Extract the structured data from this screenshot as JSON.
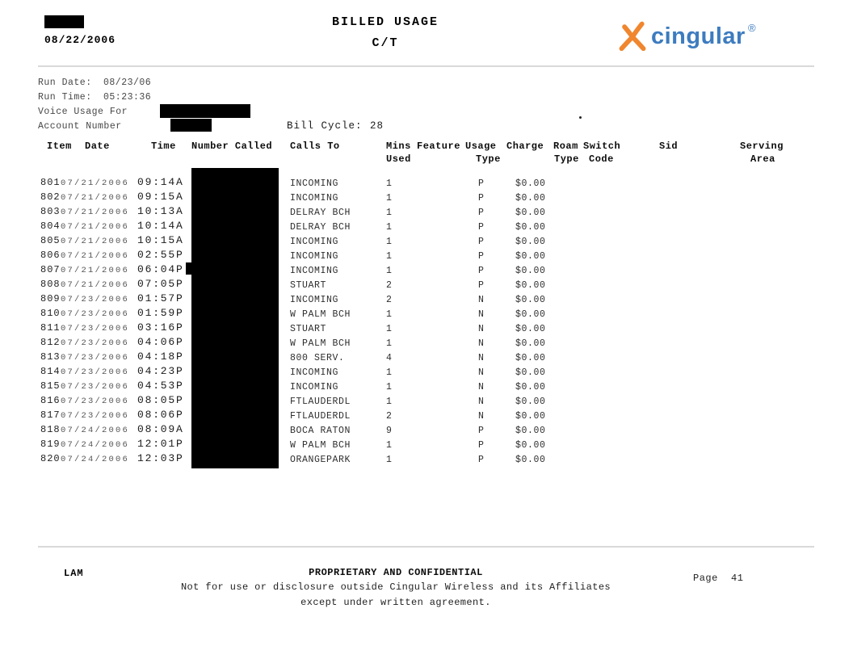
{
  "header": {
    "print_date": "08/22/2006",
    "title": "BILLED USAGE",
    "subtitle": "C/T",
    "logo": {
      "brand": "cingular",
      "registered_mark": "®",
      "orange": "#F0862E",
      "blue": "#3D7CBF"
    }
  },
  "meta": {
    "run_date_label": "Run Date:",
    "run_date_value": "08/23/06",
    "run_time_label": "Run Time:",
    "run_time_value": "05:23:36",
    "voice_usage_label": "Voice Usage For",
    "account_number_label": "Account Number",
    "bill_cycle_label": "Bill Cycle:",
    "bill_cycle_value": "28"
  },
  "table": {
    "headers": {
      "item": "Item",
      "date": "Date",
      "time": "Time",
      "number_called": "Number Called",
      "calls_to": "Calls To",
      "mins": "Mins",
      "used": "Used",
      "feature": "Feature",
      "usage": "Usage",
      "usage_type2": "Type",
      "charge": "Charge",
      "roam": "Roam",
      "roam_type2": "Type",
      "switch": "Switch",
      "code": "Code",
      "sid": "Sid",
      "serving": "Serving",
      "area": "Area"
    },
    "rows": [
      {
        "item": "801",
        "date": "07/21/2006",
        "time": "09:14A",
        "calls_to": "INCOMING",
        "mins_used": "1",
        "usage_type": "P",
        "charge": "$0.00"
      },
      {
        "item": "802",
        "date": "07/21/2006",
        "time": "09:15A",
        "calls_to": "INCOMING",
        "mins_used": "1",
        "usage_type": "P",
        "charge": "$0.00"
      },
      {
        "item": "803",
        "date": "07/21/2006",
        "time": "10:13A",
        "calls_to": "DELRAY BCH",
        "mins_used": "1",
        "usage_type": "P",
        "charge": "$0.00"
      },
      {
        "item": "804",
        "date": "07/21/2006",
        "time": "10:14A",
        "calls_to": "DELRAY BCH",
        "mins_used": "1",
        "usage_type": "P",
        "charge": "$0.00"
      },
      {
        "item": "805",
        "date": "07/21/2006",
        "time": "10:15A",
        "calls_to": "INCOMING",
        "mins_used": "1",
        "usage_type": "P",
        "charge": "$0.00"
      },
      {
        "item": "806",
        "date": "07/21/2006",
        "time": "02:55P",
        "calls_to": "INCOMING",
        "mins_used": "1",
        "usage_type": "P",
        "charge": "$0.00"
      },
      {
        "item": "807",
        "date": "07/21/2006",
        "time": "06:04P",
        "calls_to": "INCOMING",
        "mins_used": "1",
        "usage_type": "P",
        "charge": "$0.00"
      },
      {
        "item": "808",
        "date": "07/21/2006",
        "time": "07:05P",
        "calls_to": "STUART",
        "mins_used": "2",
        "usage_type": "P",
        "charge": "$0.00"
      },
      {
        "item": "809",
        "date": "07/23/2006",
        "time": "01:57P",
        "calls_to": "INCOMING",
        "mins_used": "2",
        "usage_type": "N",
        "charge": "$0.00"
      },
      {
        "item": "810",
        "date": "07/23/2006",
        "time": "01:59P",
        "calls_to": "W PALM BCH",
        "mins_used": "1",
        "usage_type": "N",
        "charge": "$0.00"
      },
      {
        "item": "811",
        "date": "07/23/2006",
        "time": "03:16P",
        "calls_to": "STUART",
        "mins_used": "1",
        "usage_type": "N",
        "charge": "$0.00"
      },
      {
        "item": "812",
        "date": "07/23/2006",
        "time": "04:06P",
        "calls_to": "W PALM BCH",
        "mins_used": "1",
        "usage_type": "N",
        "charge": "$0.00"
      },
      {
        "item": "813",
        "date": "07/23/2006",
        "time": "04:18P",
        "calls_to": "800 SERV.",
        "mins_used": "4",
        "usage_type": "N",
        "charge": "$0.00"
      },
      {
        "item": "814",
        "date": "07/23/2006",
        "time": "04:23P",
        "calls_to": "INCOMING",
        "mins_used": "1",
        "usage_type": "N",
        "charge": "$0.00"
      },
      {
        "item": "815",
        "date": "07/23/2006",
        "time": "04:53P",
        "calls_to": "INCOMING",
        "mins_used": "1",
        "usage_type": "N",
        "charge": "$0.00"
      },
      {
        "item": "816",
        "date": "07/23/2006",
        "time": "08:05P",
        "calls_to": "FTLAUDERDL",
        "mins_used": "1",
        "usage_type": "N",
        "charge": "$0.00"
      },
      {
        "item": "817",
        "date": "07/23/2006",
        "time": "08:06P",
        "calls_to": "FTLAUDERDL",
        "mins_used": "2",
        "usage_type": "N",
        "charge": "$0.00"
      },
      {
        "item": "818",
        "date": "07/24/2006",
        "time": "08:09A",
        "calls_to": "BOCA RATON",
        "mins_used": "9",
        "usage_type": "P",
        "charge": "$0.00"
      },
      {
        "item": "819",
        "date": "07/24/2006",
        "time": "12:01P",
        "calls_to": "W PALM BCH",
        "mins_used": "1",
        "usage_type": "P",
        "charge": "$0.00"
      },
      {
        "item": "820",
        "date": "07/24/2006",
        "time": "12:03P",
        "calls_to": "ORANGEPARK",
        "mins_used": "1",
        "usage_type": "P",
        "charge": "$0.00"
      }
    ]
  },
  "footer": {
    "initials": "LAM",
    "title": "PROPRIETARY AND CONFIDENTIAL",
    "line1": "Not for use or disclosure outside Cingular Wireless and its Affiliates",
    "line2": "except under written agreement.",
    "page_label": "Page",
    "page_value": "41"
  }
}
